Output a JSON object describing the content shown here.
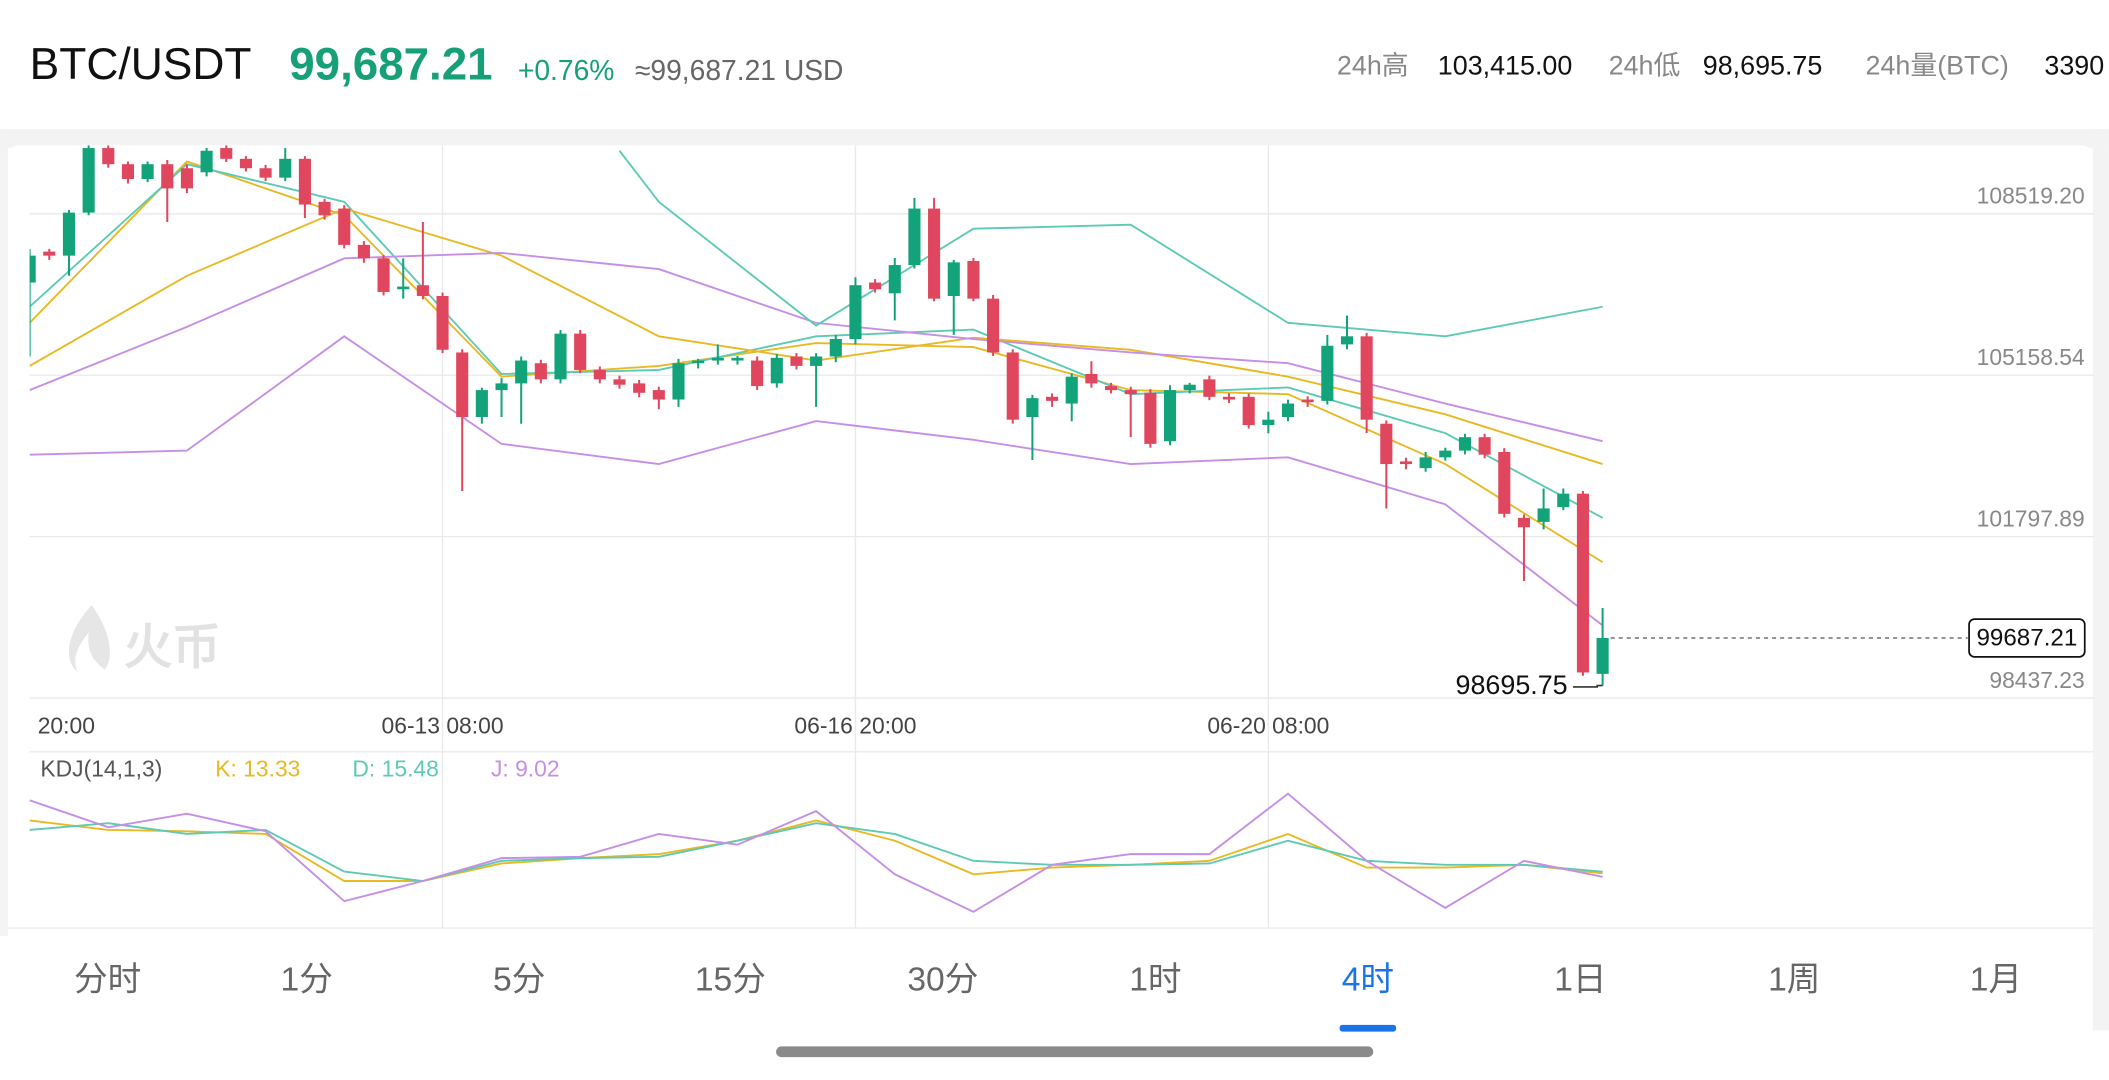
{
  "header": {
    "pair": "BTC/USDT",
    "price": "99,687.21",
    "change": "+0.76%",
    "approx": "≈99,687.21 USD",
    "stats": [
      {
        "label": "24h高",
        "value": "103,415.00"
      },
      {
        "label": "24h低",
        "value": "98,695.75"
      },
      {
        "label": "24h量(BTC)",
        "value": "3390"
      }
    ]
  },
  "watermark": "火币",
  "chart_data": [
    {
      "type": "candlestick",
      "up_color": "#12a37a",
      "down_color": "#e0475e",
      "ylim": [
        98437.23,
        109947.49
      ],
      "yticks": [
        {
          "value": 108519.2,
          "label": "108519.20"
        },
        105158.54,
        101797.89,
        98437.23
      ],
      "xlim": [
        0,
        105
      ],
      "xticks": [
        {
          "value": 0,
          "label": "20:00"
        },
        {
          "value": 21,
          "label": "06-13 08:00"
        },
        {
          "value": 42,
          "label": "06-16 20:00"
        },
        {
          "value": 63,
          "label": "06-20 08:00"
        }
      ],
      "grid": true,
      "candles": [
        [
          107089,
          107789,
          105549,
          107649
        ],
        [
          107733,
          107790,
          107560,
          107649
        ],
        [
          107649,
          108600,
          107229,
          108545
        ],
        [
          108545,
          109945,
          108489,
          109889
        ],
        [
          109889,
          109945,
          109480,
          109553
        ],
        [
          109553,
          109610,
          109150,
          109245
        ],
        [
          109245,
          109610,
          109180,
          109553
        ],
        [
          109553,
          109640,
          108349,
          109049
        ],
        [
          109469,
          109550,
          108950,
          109049
        ],
        [
          109385,
          109890,
          109300,
          109833
        ],
        [
          109889,
          109945,
          109600,
          109665
        ],
        [
          109665,
          109720,
          109400,
          109469
        ],
        [
          109469,
          109540,
          109200,
          109273
        ],
        [
          109273,
          109889,
          109200,
          109665
        ],
        [
          109665,
          109720,
          108433,
          108713
        ],
        [
          108769,
          108830,
          108400,
          108489
        ],
        [
          108629,
          108700,
          107800,
          107873
        ],
        [
          107873,
          107950,
          107500,
          107593
        ],
        [
          107593,
          107660,
          106820,
          106893
        ],
        [
          106949,
          107593,
          106753,
          107005
        ],
        [
          107033,
          108349,
          106740,
          106809
        ],
        [
          106809,
          106880,
          105620,
          105689
        ],
        [
          105633,
          105700,
          102749,
          104289
        ],
        [
          104289,
          104900,
          104150,
          104849
        ],
        [
          104849,
          105100,
          104289,
          104989
        ],
        [
          104989,
          105550,
          104149,
          105465
        ],
        [
          105409,
          105480,
          104990,
          105073
        ],
        [
          105073,
          106100,
          104990,
          106025
        ],
        [
          106025,
          106100,
          105200,
          105269
        ],
        [
          105269,
          105340,
          104990,
          105073
        ],
        [
          105073,
          105150,
          104880,
          104961
        ],
        [
          104989,
          105060,
          104700,
          104793
        ],
        [
          104849,
          104920,
          104450,
          104653
        ],
        [
          104653,
          105500,
          104500,
          105409
        ],
        [
          105409,
          105500,
          105300,
          105465
        ],
        [
          105465,
          105800,
          105380,
          105521
        ],
        [
          105465,
          105560,
          105380,
          105521
        ],
        [
          105465,
          105550,
          104850,
          104933
        ],
        [
          104989,
          105600,
          104900,
          105521
        ],
        [
          105549,
          105620,
          105280,
          105353
        ],
        [
          105353,
          105620,
          104500,
          105549
        ],
        [
          105549,
          106000,
          105430,
          105913
        ],
        [
          105913,
          107200,
          105800,
          107033
        ],
        [
          107089,
          107160,
          106880,
          106949
        ],
        [
          106865,
          107600,
          106300,
          107453
        ],
        [
          107453,
          108853,
          107380,
          108629
        ],
        [
          108629,
          108853,
          106700,
          106753
        ],
        [
          106809,
          107560,
          106000,
          107509
        ],
        [
          107537,
          107600,
          106700,
          106753
        ],
        [
          106753,
          106830,
          105560,
          105633
        ],
        [
          105633,
          105700,
          104150,
          104233
        ],
        [
          104289,
          104750,
          103393,
          104681
        ],
        [
          104709,
          104780,
          104500,
          104625
        ],
        [
          104569,
          105200,
          104200,
          105129
        ],
        [
          105185,
          105450,
          104900,
          104989
        ],
        [
          104933,
          105000,
          104780,
          104849
        ],
        [
          104849,
          104920,
          103869,
          104765
        ],
        [
          104793,
          104870,
          103650,
          103729
        ],
        [
          103785,
          104950,
          103700,
          104849
        ],
        [
          104849,
          105000,
          104780,
          104961
        ],
        [
          105073,
          105150,
          104640,
          104709
        ],
        [
          104709,
          104780,
          104580,
          104653
        ],
        [
          104709,
          104780,
          104050,
          104121
        ],
        [
          104121,
          104400,
          103950,
          104233
        ],
        [
          104289,
          104650,
          104200,
          104569
        ],
        [
          104653,
          104720,
          104500,
          104597
        ],
        [
          104625,
          106000,
          104550,
          105773
        ],
        [
          105801,
          106400,
          105700,
          105969
        ],
        [
          105969,
          106040,
          103953,
          104233
        ],
        [
          104149,
          104220,
          102385,
          103309
        ],
        [
          103365,
          103440,
          103200,
          103309
        ],
        [
          103225,
          103560,
          103150,
          103449
        ],
        [
          103449,
          103650,
          103380,
          103589
        ],
        [
          103589,
          103940,
          103510,
          103869
        ],
        [
          103869,
          103940,
          103430,
          103505
        ],
        [
          103561,
          103640,
          102200,
          102273
        ],
        [
          102189,
          102260,
          100873,
          101993
        ],
        [
          102105,
          102800,
          101950,
          102385
        ],
        [
          102413,
          102800,
          102350,
          102693
        ],
        [
          102693,
          102749,
          98900,
          98969
        ],
        [
          98941,
          100313,
          98695.75,
          99687.21
        ]
      ],
      "lines": [
        {
          "color": "#e8b923",
          "x": [
            0,
            8,
            16,
            24,
            32,
            40,
            48,
            56,
            64,
            72,
            80
          ],
          "values": [
            106249,
            109609,
            108489,
            105129,
            105353,
            105829,
            105745,
            104849,
            104765,
            103309,
            101265
          ]
        },
        {
          "color": "#5dcab5",
          "x": [
            0,
            8,
            16,
            24,
            32,
            40,
            48,
            56,
            64,
            72,
            80
          ],
          "values": [
            106585,
            109553,
            108769,
            105185,
            105269,
            105969,
            106109,
            104765,
            104905,
            103953,
            102189
          ]
        },
        {
          "color": "#e8b923",
          "x": [
            0,
            8,
            16,
            24,
            32,
            40,
            48,
            56,
            64,
            72,
            80
          ],
          "values": [
            105353,
            107229,
            108629,
            107649,
            105969,
            105465,
            105941,
            105689,
            105129,
            104345,
            103309
          ]
        },
        {
          "color": "#c68ee6",
          "x": [
            0,
            8,
            16,
            24,
            32,
            40,
            48,
            56,
            64,
            72,
            80
          ],
          "values": [
            104849,
            106165,
            107593,
            107705,
            107369,
            106249,
            105913,
            105633,
            105409,
            104569,
            103785
          ]
        },
        {
          "color": "#c68ee6",
          "x": [
            0,
            8,
            16,
            24,
            32,
            40,
            48,
            56,
            64,
            72,
            80
          ],
          "values": [
            103505,
            103589,
            105969,
            103729,
            103309,
            104205,
            103813,
            103309,
            103449,
            102469,
            99949
          ]
        },
        {
          "color": "#5dcab5",
          "x": [
            30,
            32,
            40,
            48,
            56,
            64,
            72,
            80
          ],
          "values": [
            109833,
            108769,
            106193,
            108209,
            108293,
            106249,
            105969,
            106585
          ]
        }
      ]
    },
    {
      "type": "line",
      "title": "KDJ(14,1,3)",
      "ylim": [
        -55,
        130
      ],
      "xlim": [
        0,
        105
      ],
      "series": [
        {
          "name": "K: 13.33",
          "color": "#e8b923",
          "x": [
            0,
            4,
            8,
            12,
            16,
            20,
            24,
            28,
            32,
            36,
            40,
            44,
            48,
            52,
            56,
            60,
            64,
            68,
            72,
            76,
            80
          ],
          "values": [
            79.5,
            67.7,
            66,
            62.6,
            3.8,
            3.8,
            25.7,
            32.4,
            37.4,
            54.2,
            79.5,
            54.2,
            12.2,
            20.6,
            24,
            29,
            62.6,
            20.6,
            20.6,
            24,
            13.33
          ]
        },
        {
          "name": "D: 15.48",
          "color": "#5dcab5",
          "x": [
            0,
            4,
            8,
            12,
            16,
            20,
            24,
            28,
            32,
            36,
            40,
            44,
            48,
            52,
            56,
            60,
            64,
            68,
            72,
            76,
            80
          ],
          "values": [
            67.7,
            76.1,
            62.6,
            67.7,
            15.6,
            3.8,
            29,
            32.4,
            34.1,
            54.2,
            76.1,
            62.6,
            29,
            24,
            24,
            25.7,
            54.2,
            29,
            24,
            24,
            15.48
          ]
        },
        {
          "name": "J: 9.02",
          "color": "#c68ee6",
          "x": [
            0,
            4,
            8,
            12,
            16,
            20,
            24,
            28,
            32,
            36,
            40,
            44,
            48,
            52,
            56,
            60,
            64,
            68,
            72,
            76,
            80
          ],
          "values": [
            104.7,
            71,
            87.9,
            66,
            -21.4,
            3.8,
            32.4,
            34.1,
            62.6,
            49.2,
            91.2,
            12.2,
            -34.8,
            24,
            37.4,
            37.4,
            113,
            29,
            -29.8,
            29,
            9.02
          ]
        }
      ]
    }
  ],
  "tabs": {
    "items": [
      "分时",
      "1分",
      "5分",
      "15分",
      "30分",
      "1时",
      "4时",
      "1日",
      "1周",
      "1月"
    ],
    "selected": 6
  }
}
